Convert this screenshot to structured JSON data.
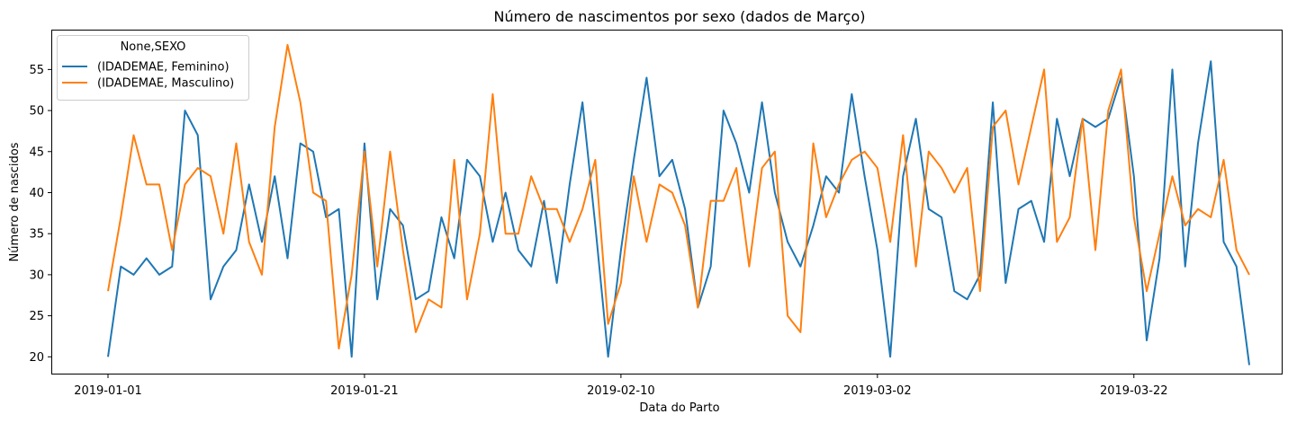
{
  "chart_data": {
    "type": "line",
    "title": "Número de nascimentos por sexo (dados de Março)",
    "xlabel": "Data do Parto",
    "ylabel": "Número de nascidos",
    "x_start": "2019-01-01",
    "x_tick_labels": [
      "2019-01-01",
      "2019-01-21",
      "2019-02-10",
      "2019-03-02",
      "2019-03-22"
    ],
    "y_ticks": [
      20,
      25,
      30,
      35,
      40,
      45,
      50,
      55
    ],
    "ylim": [
      17.9,
      59.8
    ],
    "grid": false,
    "legend": {
      "title": "None,SEXO",
      "placement": "top-left"
    },
    "x": [
      "2019-01-01",
      "2019-01-02",
      "2019-01-03",
      "2019-01-04",
      "2019-01-05",
      "2019-01-06",
      "2019-01-07",
      "2019-01-08",
      "2019-01-09",
      "2019-01-10",
      "2019-01-11",
      "2019-01-12",
      "2019-01-13",
      "2019-01-14",
      "2019-01-15",
      "2019-01-16",
      "2019-01-17",
      "2019-01-18",
      "2019-01-19",
      "2019-01-20",
      "2019-01-21",
      "2019-01-22",
      "2019-01-23",
      "2019-01-24",
      "2019-01-25",
      "2019-01-26",
      "2019-01-27",
      "2019-01-28",
      "2019-01-29",
      "2019-01-30",
      "2019-01-31",
      "2019-02-01",
      "2019-02-02",
      "2019-02-03",
      "2019-02-04",
      "2019-02-05",
      "2019-02-06",
      "2019-02-07",
      "2019-02-08",
      "2019-02-09",
      "2019-02-10",
      "2019-02-11",
      "2019-02-12",
      "2019-02-13",
      "2019-02-14",
      "2019-02-15",
      "2019-02-16",
      "2019-02-17",
      "2019-02-18",
      "2019-02-19",
      "2019-02-20",
      "2019-02-21",
      "2019-02-22",
      "2019-02-23",
      "2019-02-24",
      "2019-02-25",
      "2019-02-26",
      "2019-02-27",
      "2019-02-28",
      "2019-03-01",
      "2019-03-02",
      "2019-03-03",
      "2019-03-04",
      "2019-03-05",
      "2019-03-06",
      "2019-03-07",
      "2019-03-08",
      "2019-03-09",
      "2019-03-10",
      "2019-03-11",
      "2019-03-12",
      "2019-03-13",
      "2019-03-14",
      "2019-03-15",
      "2019-03-16",
      "2019-03-17",
      "2019-03-18",
      "2019-03-19",
      "2019-03-20",
      "2019-03-21",
      "2019-03-22",
      "2019-03-23",
      "2019-03-24",
      "2019-03-25",
      "2019-03-26",
      "2019-03-27",
      "2019-03-28",
      "2019-03-29",
      "2019-03-30",
      "2019-03-31"
    ],
    "series": [
      {
        "name": "(IDADEMAE, Feminino)",
        "color": "#1f77b4",
        "values": [
          20,
          31,
          30,
          32,
          30,
          31,
          50,
          47,
          27,
          31,
          33,
          41,
          34,
          42,
          32,
          46,
          45,
          37,
          38,
          20,
          46,
          27,
          38,
          36,
          27,
          28,
          37,
          32,
          44,
          42,
          34,
          40,
          33,
          31,
          39,
          29,
          41,
          51,
          36,
          20,
          33,
          44,
          54,
          42,
          44,
          38,
          26,
          31,
          50,
          46,
          40,
          51,
          40,
          34,
          31,
          36,
          42,
          40,
          52,
          42,
          33,
          20,
          42,
          49,
          38,
          37,
          28,
          27,
          30,
          51,
          29,
          38,
          39,
          34,
          49,
          42,
          49,
          48,
          49,
          54,
          42,
          22,
          32,
          55,
          31,
          46,
          56,
          34,
          31,
          19
        ]
      },
      {
        "name": "(IDADEMAE, Masculino)",
        "color": "#ff7f0e",
        "values": [
          28,
          37,
          47,
          41,
          41,
          33,
          41,
          43,
          42,
          35,
          46,
          34,
          30,
          48,
          58,
          51,
          40,
          39,
          21,
          30,
          45,
          31,
          45,
          33,
          23,
          27,
          26,
          44,
          27,
          35,
          52,
          35,
          35,
          42,
          38,
          38,
          34,
          38,
          44,
          24,
          29,
          42,
          34,
          41,
          40,
          36,
          26,
          39,
          39,
          43,
          31,
          43,
          45,
          25,
          23,
          46,
          37,
          41,
          44,
          45,
          43,
          34,
          47,
          31,
          45,
          43,
          40,
          43,
          28,
          48,
          50,
          41,
          48,
          55,
          34,
          37,
          49,
          33,
          50,
          55,
          37,
          28,
          35,
          42,
          36,
          38,
          37,
          44,
          33,
          30
        ]
      }
    ]
  }
}
